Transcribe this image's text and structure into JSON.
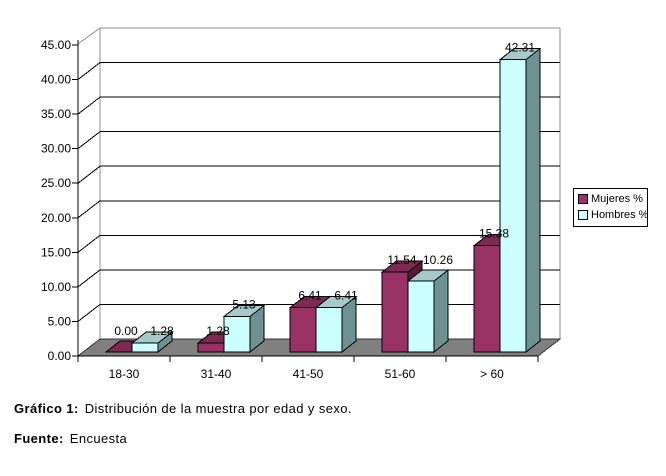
{
  "figure": {
    "caption": {
      "label": "Gráfico 1:",
      "text": "Distribución de la muestra por edad y sexo."
    },
    "source": {
      "label": "Fuente:",
      "text": "Encuesta"
    }
  },
  "legend": {
    "position": "right",
    "items": [
      {
        "label": "Mujeres %",
        "color": "#993366"
      },
      {
        "label": "Hombres %",
        "color": "#CCFFFF"
      }
    ]
  },
  "chart_data": {
    "type": "bar",
    "subtype": "3d-column",
    "title": "",
    "xlabel": "",
    "ylabel": "",
    "categories": [
      "18-30",
      "31-40",
      "41-50",
      "51-60",
      "> 60"
    ],
    "series": [
      {
        "name": "Mujeres %",
        "color": "#993366",
        "shade_top": "#7C2953",
        "shade_side": "#541C38",
        "values": [
          0.0,
          1.28,
          6.41,
          11.54,
          15.38
        ],
        "labels": [
          "0.00",
          "1.28",
          "6.41",
          "11.54",
          "15.38"
        ]
      },
      {
        "name": "Hombres %",
        "color": "#CCFFFF",
        "shade_top": "#A6C9C9",
        "shade_side": "#6E9191",
        "values": [
          1.28,
          5.13,
          6.41,
          10.26,
          42.31
        ],
        "labels": [
          "1.28",
          "5.13",
          "6.41",
          "10.26",
          "42.31"
        ]
      }
    ],
    "ylim": [
      0,
      45
    ],
    "ytick_step": 5,
    "y_tick_labels": [
      "0.00",
      "5.00",
      "10.00",
      "15.00",
      "20.00",
      "25.00",
      "30.00",
      "35.00",
      "40.00",
      "45.00"
    ],
    "gridlines": true,
    "data_labels": true,
    "colors": {
      "floor": "#808080",
      "floor_edge": "#333333",
      "wall_edge": "#909090",
      "grid": "#000000",
      "axis": "#000000",
      "text": "#000000"
    }
  }
}
